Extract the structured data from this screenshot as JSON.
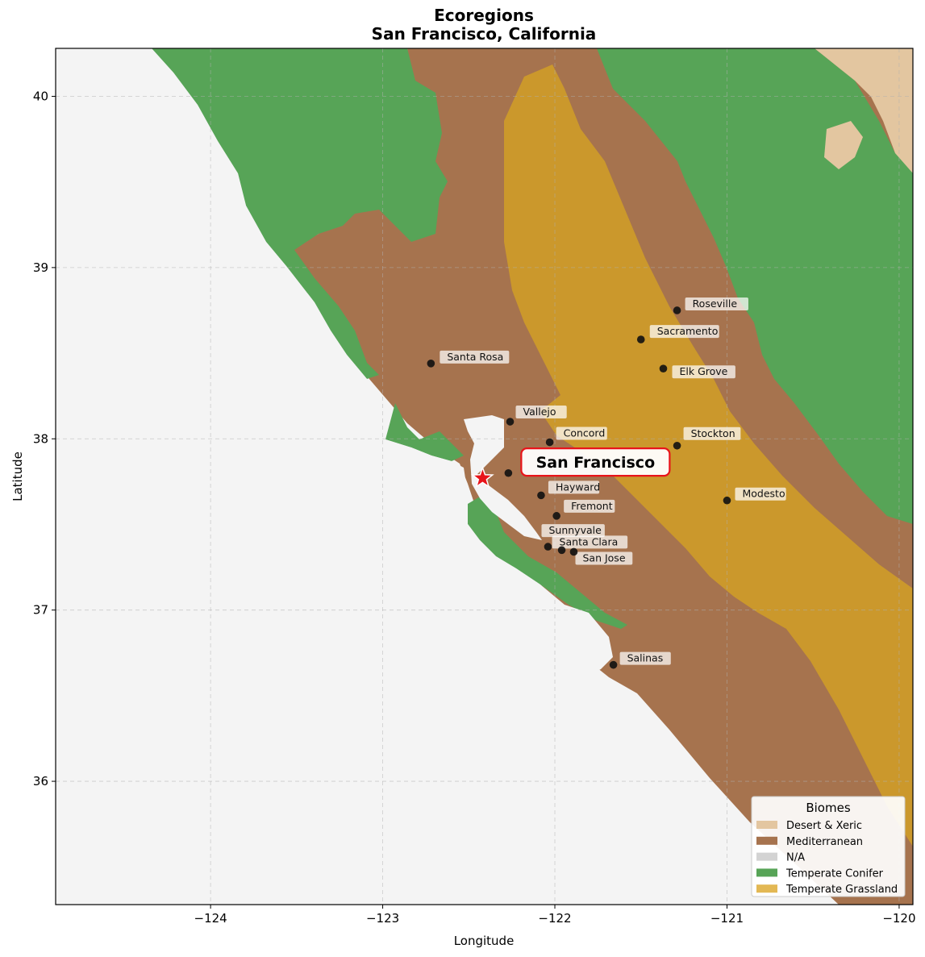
{
  "title": {
    "line1": "Ecoregions",
    "line2": "San Francisco, California"
  },
  "axes": {
    "xlabel": "Longitude",
    "ylabel": "Latitude",
    "xlim": [
      -124.9,
      -119.92
    ],
    "ylim": [
      35.28,
      40.28
    ],
    "x_ticks": [
      {
        "value": -124,
        "label": "−124"
      },
      {
        "value": -123,
        "label": "−123"
      },
      {
        "value": -122,
        "label": "−122"
      },
      {
        "value": -121,
        "label": "−121"
      },
      {
        "value": -120,
        "label": "−120"
      }
    ],
    "y_ticks": [
      {
        "value": 36,
        "label": "36"
      },
      {
        "value": 37,
        "label": "37"
      },
      {
        "value": 38,
        "label": "38"
      },
      {
        "value": 39,
        "label": "39"
      },
      {
        "value": 40,
        "label": "40"
      }
    ],
    "grid": true
  },
  "colors": {
    "ocean": "#f4f4f4",
    "desert_xeric": "#e3c6a0",
    "mediterranean": "#a6734e",
    "na": "#d3d3d3",
    "temperate_conifer": "#57a457",
    "temperate_grassland": "#cb982c",
    "legend_grassland_swatch": "#e3b854",
    "city_dot": "#111111",
    "star": "#e8141a",
    "highlight_border": "#e8141a"
  },
  "cities": [
    {
      "name": "Roseville",
      "lon": -121.29,
      "lat": 38.75
    },
    {
      "name": "Sacramento",
      "lon": -121.5,
      "lat": 38.58
    },
    {
      "name": "Santa Rosa",
      "lon": -122.72,
      "lat": 38.44
    },
    {
      "name": "Elk Grove",
      "lon": -121.37,
      "lat": 38.41
    },
    {
      "name": "Vallejo",
      "lon": -122.26,
      "lat": 38.1
    },
    {
      "name": "Concord",
      "lon": -122.03,
      "lat": 37.98
    },
    {
      "name": "Stockton",
      "lon": -121.29,
      "lat": 37.96
    },
    {
      "name": "Hayward",
      "lon": -122.08,
      "lat": 37.67
    },
    {
      "name": "Modesto",
      "lon": -121.0,
      "lat": 37.64
    },
    {
      "name": "Fremont",
      "lon": -121.99,
      "lat": 37.55
    },
    {
      "name": "Sunnyvale",
      "lon": -122.04,
      "lat": 37.37
    },
    {
      "name": "Santa Clara",
      "lon": -121.96,
      "lat": 37.35
    },
    {
      "name": "San Jose",
      "lon": -121.89,
      "lat": 37.34
    },
    {
      "name": "Salinas",
      "lon": -121.66,
      "lat": 36.68
    }
  ],
  "unlabeled_point": {
    "lon": -122.27,
    "lat": 37.8
  },
  "focus": {
    "name": "San Francisco",
    "lon": -122.42,
    "lat": 37.77
  },
  "legend": {
    "title": "Biomes",
    "placement": "lower-right",
    "items": [
      {
        "label": "Desert & Xeric",
        "color": "#e3c6a0"
      },
      {
        "label": "Mediterranean",
        "color": "#a6734e"
      },
      {
        "label": "N/A",
        "color": "#d3d3d3"
      },
      {
        "label": "Temperate Conifer",
        "color": "#57a457"
      },
      {
        "label": "Temperate Grassland",
        "color": "#e3b854"
      }
    ]
  }
}
